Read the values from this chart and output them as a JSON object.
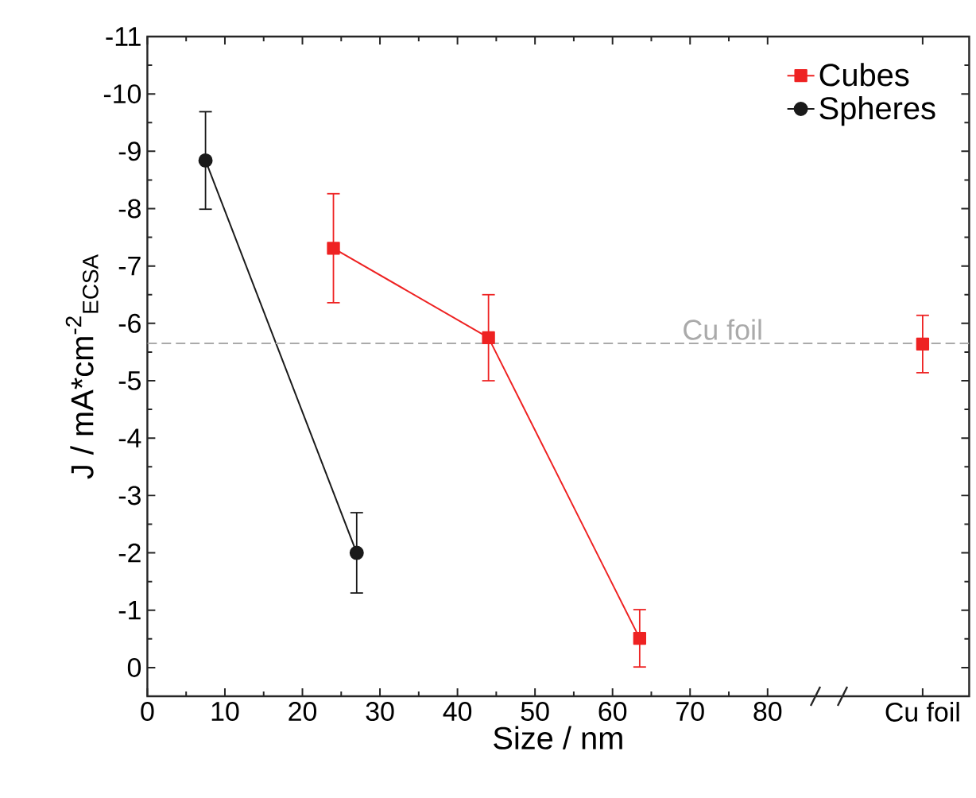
{
  "chart_data": {
    "type": "line",
    "xlabel": "Size / nm",
    "ylabel": "J / mA*cm$^{-2}$$_{ECSA}$",
    "xlim": [
      0,
      106
    ],
    "xticks": [
      0,
      10,
      20,
      30,
      40,
      50,
      60,
      70,
      80,
      {
        "value": 100,
        "label": "Cu foil"
      }
    ],
    "ylim": [
      0.5,
      -11
    ],
    "yticks": [
      0,
      -1,
      -2,
      -3,
      -4,
      -5,
      -6,
      -7,
      -8,
      -9,
      -10,
      -11
    ],
    "legend": "top right",
    "grid": false,
    "series": [
      {
        "name": "Cubes",
        "color": "#ee2222",
        "marker": "square",
        "x": [
          24,
          44,
          63.5
        ],
        "values": [
          -7.31,
          -5.75,
          -0.51
        ],
        "errors": [
          0.95,
          0.75,
          0.5
        ]
      },
      {
        "name": "Spheres",
        "color": "#1a1a1a",
        "marker": "circle",
        "x": [
          7.5,
          27
        ],
        "values": [
          -8.84,
          -2.0
        ],
        "errors": [
          0.85,
          0.7
        ]
      },
      {
        "type": "scatter",
        "color": "#ee2222",
        "marker": "square",
        "x": [
          100
        ],
        "values": [
          -5.64
        ],
        "errors": [
          0.5
        ]
      }
    ],
    "ref_lines": [
      {
        "axis": "y",
        "value": -5.65,
        "label": "Cu foil",
        "color": "#aaaaaa",
        "line_style": "dashed"
      }
    ]
  }
}
